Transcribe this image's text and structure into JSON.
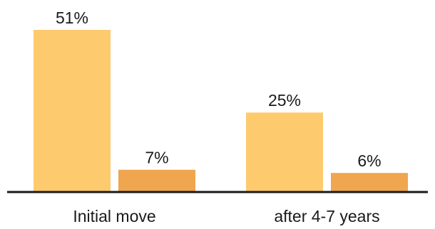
{
  "chart_data": {
    "type": "bar",
    "categories": [
      "Initial move",
      "after 4-7 years"
    ],
    "series": [
      {
        "values": [
          51,
          25
        ],
        "labels": [
          "51%",
          "25%"
        ],
        "color": "#FDCB6E"
      },
      {
        "values": [
          7,
          6
        ],
        "labels": [
          "7%",
          "6%"
        ],
        "color": "#EFA64E"
      }
    ],
    "ylim": [
      0,
      55
    ],
    "grid": false,
    "legend": "none",
    "axis_color": "#1a1a1a"
  }
}
